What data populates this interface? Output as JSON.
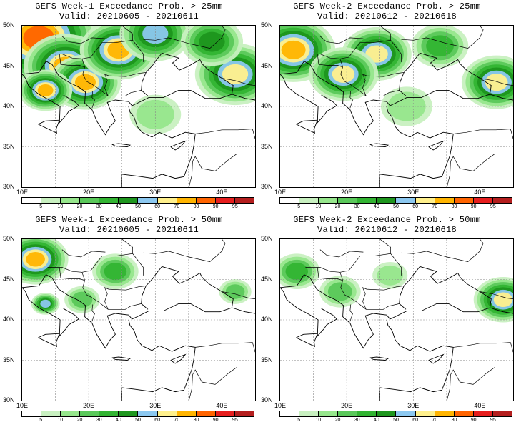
{
  "panels": [
    {
      "title": "GEFS Week-1 Exceedance Prob. > 25mm",
      "valid": "Valid: 20210605 - 20210611",
      "blobs": [
        {
          "lon": 12.5,
          "lat": 48.5,
          "r": 1.8,
          "level": 9
        },
        {
          "lon": 16.5,
          "lat": 45.0,
          "r": 1.4,
          "level": 8
        },
        {
          "lon": 19.5,
          "lat": 43.0,
          "r": 1.2,
          "level": 8
        },
        {
          "lon": 24.5,
          "lat": 47.0,
          "r": 1.3,
          "level": 8
        },
        {
          "lon": 13.5,
          "lat": 42.0,
          "r": 0.9,
          "level": 8
        },
        {
          "lon": 42.0,
          "lat": 44.0,
          "r": 1.5,
          "level": 7
        },
        {
          "lon": 30.0,
          "lat": 49.0,
          "r": 1.5,
          "level": 6
        },
        {
          "lon": 38.5,
          "lat": 48.0,
          "r": 1.5,
          "level": 5
        },
        {
          "lon": 30.0,
          "lat": 39.0,
          "r": 2.2,
          "level": 2
        }
      ]
    },
    {
      "title": "GEFS Week-2 Exceedance Prob. > 25mm",
      "valid": "Valid: 20210612 - 20210618",
      "blobs": [
        {
          "lon": 12.0,
          "lat": 47.0,
          "r": 1.4,
          "level": 8
        },
        {
          "lon": 24.5,
          "lat": 46.5,
          "r": 1.3,
          "level": 7
        },
        {
          "lon": 19.5,
          "lat": 44.0,
          "r": 1.3,
          "level": 7
        },
        {
          "lon": 42.5,
          "lat": 43.0,
          "r": 1.3,
          "level": 7
        },
        {
          "lon": 34.0,
          "lat": 47.5,
          "r": 1.6,
          "level": 4
        },
        {
          "lon": 29.0,
          "lat": 40.0,
          "r": 2.2,
          "level": 2
        }
      ]
    },
    {
      "title": "GEFS Week-1 Exceedance Prob. > 50mm",
      "valid": "Valid: 20210605 - 20210611",
      "blobs": [
        {
          "lon": 12.0,
          "lat": 47.5,
          "r": 1.1,
          "level": 8
        },
        {
          "lon": 13.5,
          "lat": 42.0,
          "r": 0.6,
          "level": 6
        },
        {
          "lon": 24.0,
          "lat": 46.0,
          "r": 1.3,
          "level": 4
        },
        {
          "lon": 19.0,
          "lat": 42.5,
          "r": 1.2,
          "level": 3
        },
        {
          "lon": 42.0,
          "lat": 43.5,
          "r": 1.1,
          "level": 3
        }
      ]
    },
    {
      "title": "GEFS Week-2 Exceedance Prob. > 50mm",
      "valid": "Valid: 20210612 - 20210618",
      "blobs": [
        {
          "lon": 12.5,
          "lat": 46.0,
          "r": 1.3,
          "level": 4
        },
        {
          "lon": 43.5,
          "lat": 42.5,
          "r": 1.1,
          "level": 7
        },
        {
          "lon": 19.0,
          "lat": 43.5,
          "r": 1.4,
          "level": 3
        },
        {
          "lon": 26.5,
          "lat": 45.5,
          "r": 1.5,
          "level": 2
        }
      ]
    }
  ],
  "lat_labels": [
    "50N",
    "45N",
    "40N",
    "35N",
    "30N"
  ],
  "lon_labels": [
    "10E",
    "20E",
    "30E",
    "40E"
  ],
  "map_extent": {
    "lon_min": 10,
    "lon_max": 45,
    "lat_min": 30,
    "lat_max": 50
  },
  "colorbar": {
    "labels": [
      "5",
      "10",
      "20",
      "30",
      "40",
      "50",
      "60",
      "70",
      "80",
      "90",
      "95"
    ],
    "colors": [
      "#ffffff",
      "#c8f0c0",
      "#96e68c",
      "#5ac85a",
      "#32b432",
      "#1e961e",
      "#8cc8f0",
      "#fff08c",
      "#ffb400",
      "#ff6400",
      "#e61e1e",
      "#b41e1e"
    ]
  },
  "colors": {
    "land": "#ffffff",
    "coast": "#000000",
    "grid": "#888888"
  }
}
